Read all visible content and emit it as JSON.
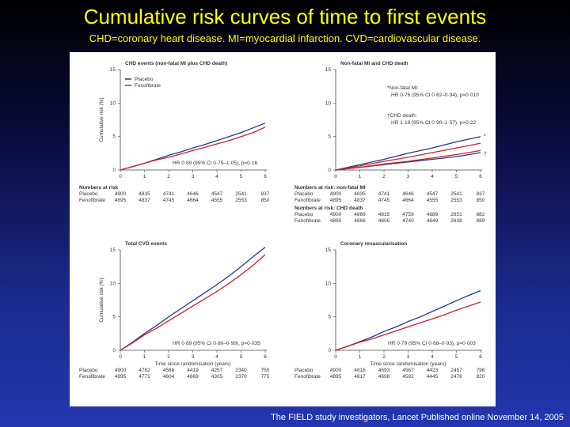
{
  "slide": {
    "title": "Cumulative risk curves of time to first events",
    "subtitle": "CHD=coronary heart disease. MI=myocardial infarction. CVD=cardiovascular disease.",
    "credit": "The FIELD study investigators, Lancet  Published online November 14, 2005"
  },
  "colors": {
    "placebo": "#1f3a93",
    "fenofibrate": "#d0202a",
    "accent_title": "#ffff00"
  },
  "chart_data": [
    {
      "type": "line",
      "title": "CHD events (non-fatal MI plus CHD death)",
      "ylabel": "Cumulative risk (%)",
      "xlabel": "",
      "xlim": [
        0,
        6
      ],
      "ylim": [
        0,
        15
      ],
      "yticks": [
        0,
        5,
        10,
        15
      ],
      "xticks": [
        0,
        1,
        2,
        3,
        4,
        5,
        6
      ],
      "legend": "top-left",
      "series": [
        {
          "name": "Placebo",
          "x": [
            0,
            0.5,
            1,
            1.5,
            2,
            2.5,
            3,
            3.5,
            4,
            4.5,
            5,
            5.5,
            6
          ],
          "y": [
            0,
            0.5,
            1.0,
            1.6,
            2.2,
            2.7,
            3.3,
            3.8,
            4.4,
            5.0,
            5.6,
            6.3,
            7.0
          ]
        },
        {
          "name": "Fenofibrate",
          "x": [
            0,
            0.5,
            1,
            1.5,
            2,
            2.5,
            3,
            3.5,
            4,
            4.5,
            5,
            5.5,
            6
          ],
          "y": [
            0,
            0.5,
            1.0,
            1.5,
            1.9,
            2.4,
            2.9,
            3.4,
            3.9,
            4.4,
            5.0,
            5.6,
            6.4
          ]
        }
      ],
      "annotations": [
        "HR 0·89 (95% CI 0·75–1·05), p=0·16"
      ],
      "risk_table": {
        "header": "Numbers at risk",
        "rows": [
          {
            "label": "Placebo",
            "values": [
              "4900",
              "4835",
              "4741",
              "4646",
              "4547",
              "2541",
              "837"
            ]
          },
          {
            "label": "Fenofibrate",
            "values": [
              "4895",
              "4837",
              "4745",
              "4664",
              "4555",
              "2553",
              "850"
            ]
          }
        ]
      }
    },
    {
      "type": "line",
      "title": "Non-fatal MI and CHD death",
      "ylabel": "",
      "xlabel": "",
      "xlim": [
        0,
        6
      ],
      "ylim": [
        0,
        15
      ],
      "yticks": [
        0,
        5,
        10,
        15
      ],
      "xticks": [
        0,
        1,
        2,
        3,
        4,
        5,
        6
      ],
      "series": [
        {
          "name": "Placebo",
          "group": "Non-fatal MI",
          "x": [
            0,
            1,
            2,
            3,
            4,
            5,
            6
          ],
          "y": [
            0,
            0.8,
            1.6,
            2.5,
            3.3,
            4.2,
            5.0
          ]
        },
        {
          "name": "Fenofibrate",
          "group": "Non-fatal MI",
          "x": [
            0,
            1,
            2,
            3,
            4,
            5,
            6
          ],
          "y": [
            0,
            0.6,
            1.3,
            1.9,
            2.6,
            3.3,
            4.0
          ]
        },
        {
          "name": "Placebo",
          "group": "CHD death",
          "x": [
            0,
            1,
            2,
            3,
            4,
            5,
            6
          ],
          "y": [
            0,
            0.4,
            0.8,
            1.2,
            1.6,
            2.0,
            2.6
          ]
        },
        {
          "name": "Fenofibrate",
          "group": "CHD death",
          "x": [
            0,
            1,
            2,
            3,
            4,
            5,
            6
          ],
          "y": [
            0,
            0.4,
            0.9,
            1.3,
            1.8,
            2.3,
            2.9
          ]
        }
      ],
      "annotations": [
        "*Non-fatal MI:",
        "HR 0·76 (95% CI 0·62–0·94), p=0·010",
        "†CHD death:",
        "HR 1·19 (95% CI 0·90–1·57), p=0·22"
      ],
      "curve_markers": [
        "*",
        "†"
      ],
      "risk_tables": [
        {
          "header": "Numbers at risk: non-fatal MI",
          "rows": [
            {
              "label": "Placebo",
              "values": [
                "4900",
                "4835",
                "4741",
                "4646",
                "4547",
                "2541",
                "837"
              ]
            },
            {
              "label": "Fenofibrate",
              "values": [
                "4895",
                "4837",
                "4745",
                "4664",
                "4555",
                "2553",
                "850"
              ]
            }
          ]
        },
        {
          "header": "Numbers at risk: CHD death",
          "rows": [
            {
              "label": "Placebo",
              "values": [
                "4900",
                "4866",
                "4815",
                "4759",
                "4689",
                "2651",
                "882"
              ]
            },
            {
              "label": "Fenofibrate",
              "values": [
                "4895",
                "4866",
                "4806",
                "4740",
                "4649",
                "2638",
                "889"
              ]
            }
          ]
        }
      ]
    },
    {
      "type": "line",
      "title": "Total CVD events",
      "ylabel": "Cumulative risk (%)",
      "xlabel": "Time since randomisation (years)",
      "xlim": [
        0,
        6
      ],
      "ylim": [
        0,
        15
      ],
      "yticks": [
        0,
        5,
        10,
        15
      ],
      "xticks": [
        0,
        1,
        2,
        3,
        4,
        5,
        6
      ],
      "series": [
        {
          "name": "Placebo",
          "x": [
            0,
            0.5,
            1,
            1.5,
            2,
            2.5,
            3,
            3.5,
            4,
            4.5,
            5,
            5.5,
            6
          ],
          "y": [
            0,
            1.2,
            2.5,
            3.7,
            5.0,
            6.2,
            7.4,
            8.6,
            9.8,
            11.1,
            12.5,
            14.0,
            15.4
          ]
        },
        {
          "name": "Fenofibrate",
          "x": [
            0,
            0.5,
            1,
            1.5,
            2,
            2.5,
            3,
            3.5,
            4,
            4.5,
            5,
            5.5,
            6
          ],
          "y": [
            0,
            1.1,
            2.3,
            3.3,
            4.4,
            5.5,
            6.6,
            7.7,
            8.8,
            10.0,
            11.3,
            12.7,
            14.3
          ]
        }
      ],
      "annotations": [
        "HR 0·89 (95% CI 0·80–0·99), p=0·035"
      ],
      "risk_table": {
        "header": "",
        "rows": [
          {
            "label": "Placebo",
            "values": [
              "4900",
              "4762",
              "4586",
              "4419",
              "4257",
              "2340",
              "750"
            ]
          },
          {
            "label": "Fenofibrate",
            "values": [
              "4895",
              "4771",
              "4604",
              "4669",
              "4305",
              "2370",
              "775"
            ]
          }
        ]
      }
    },
    {
      "type": "line",
      "title": "Coronary revascularisation",
      "ylabel": "",
      "xlabel": "Time since randomisation (years)",
      "xlim": [
        0,
        6
      ],
      "ylim": [
        0,
        15
      ],
      "yticks": [
        0,
        5,
        10,
        15
      ],
      "xticks": [
        0,
        1,
        2,
        3,
        4,
        5,
        6
      ],
      "series": [
        {
          "name": "Placebo",
          "x": [
            0,
            0.5,
            1,
            1.5,
            2,
            2.5,
            3,
            3.5,
            4,
            4.5,
            5,
            5.5,
            6
          ],
          "y": [
            0,
            0.6,
            1.3,
            2.0,
            2.8,
            3.5,
            4.3,
            5.0,
            5.8,
            6.6,
            7.4,
            8.2,
            8.9
          ]
        },
        {
          "name": "Fenofibrate",
          "x": [
            0,
            0.5,
            1,
            1.5,
            2,
            2.5,
            3,
            3.5,
            4,
            4.5,
            5,
            5.5,
            6
          ],
          "y": [
            0,
            0.6,
            1.2,
            1.7,
            2.3,
            2.9,
            3.5,
            4.1,
            4.7,
            5.3,
            6.0,
            6.6,
            7.2
          ]
        }
      ],
      "annotations": [
        "HR 0·79 (95% CI 0·68–0·93), p=0·003"
      ],
      "risk_table": {
        "header": "",
        "rows": [
          {
            "label": "Placebo",
            "values": [
              "4900",
              "4818",
              "4693",
              "4567",
              "4423",
              "2457",
              "796"
            ]
          },
          {
            "label": "Fenofibrate",
            "values": [
              "4895",
              "4817",
              "4698",
              "4592",
              "4445",
              "2476",
              "820"
            ]
          }
        ]
      }
    }
  ]
}
